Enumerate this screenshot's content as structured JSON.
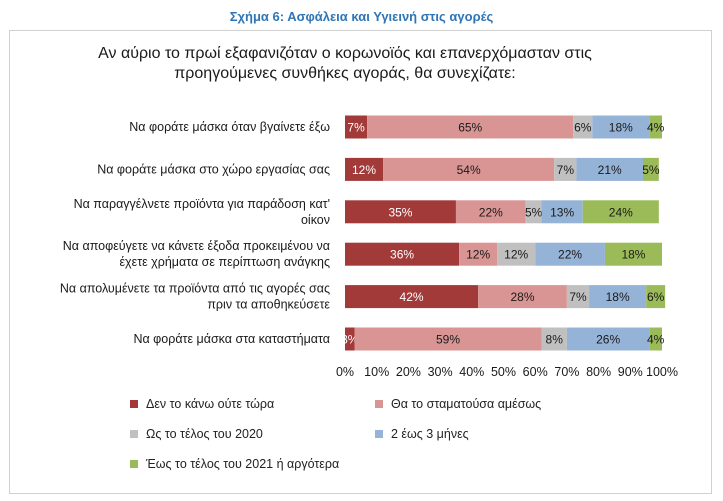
{
  "figure_title": "Σχήμα 6: Ασφάλεια και Υγιεινή στις αγορές",
  "chart_data": {
    "type": "bar",
    "orientation": "horizontal",
    "stacked": true,
    "percent": true,
    "title_lines": [
      "Αν αύριο το πρωί εξαφανιζόταν ο κορωνοϊός και επανερχόμασταν στις",
      "προηγούμενες συνθήκες αγοράς, θα συνεχίζατε:"
    ],
    "categories": [
      [
        "Να φοράτε μάσκα όταν βγαίνετε έξω"
      ],
      [
        "Να φοράτε μάσκα στο χώρο εργασίας σας"
      ],
      [
        "Να παραγγέλνετε προϊόντα για παράδοση κατ'",
        "οίκον"
      ],
      [
        "Να αποφεύγετε να κάνετε έξοδα προκειμένου να",
        "έχετε χρήματα σε περίπτωση ανάγκης"
      ],
      [
        "Να απολυμένετε τα προϊόντα από τις αγορές σας",
        "πριν τα αποθηκεύσετε"
      ],
      [
        "Να φοράτε μάσκα στα καταστήματα"
      ]
    ],
    "series": [
      {
        "name": "Δεν το κάνω ούτε τώρα",
        "color": "#a33a3a",
        "label_color": "#ffffff",
        "values": [
          7,
          12,
          35,
          36,
          42,
          3
        ]
      },
      {
        "name": "Θα το σταματούσα αμέσως",
        "color": "#d99594",
        "label_color": "#1a1a1a",
        "values": [
          65,
          54,
          22,
          12,
          28,
          59
        ]
      },
      {
        "name": "Ως το τέλος του 2020",
        "color": "#c0c0c0",
        "label_color": "#1a1a1a",
        "values": [
          6,
          7,
          5,
          12,
          7,
          8
        ]
      },
      {
        "name": "2 έως 3 μήνες",
        "color": "#95b3d7",
        "label_color": "#1a1a1a",
        "values": [
          18,
          21,
          13,
          22,
          18,
          26
        ]
      },
      {
        "name": "Έως το τέλος του 2021 ή αργότερα",
        "color": "#9bbb59",
        "label_color": "#1a1a1a",
        "values": [
          4,
          5,
          24,
          18,
          6,
          4
        ]
      }
    ],
    "data_labels": [
      [
        "7%",
        "65%",
        "6%",
        "18%",
        "4%"
      ],
      [
        "12%",
        "54%",
        "7%",
        "21%",
        "5%"
      ],
      [
        "35%",
        "22%",
        "5%",
        "13%",
        "24%"
      ],
      [
        "36%",
        "12%",
        "12%",
        "22%",
        "18%"
      ],
      [
        "42%",
        "28%",
        "7%",
        "18%",
        "6%"
      ],
      [
        "3%",
        "59%",
        "8%",
        "26%",
        "4%"
      ]
    ],
    "x_ticks": [
      "0%",
      "10%",
      "20%",
      "30%",
      "40%",
      "50%",
      "60%",
      "70%",
      "80%",
      "90%",
      "100%"
    ],
    "xlim": [
      0,
      100
    ],
    "grid": false,
    "legend_position": "bottom"
  }
}
